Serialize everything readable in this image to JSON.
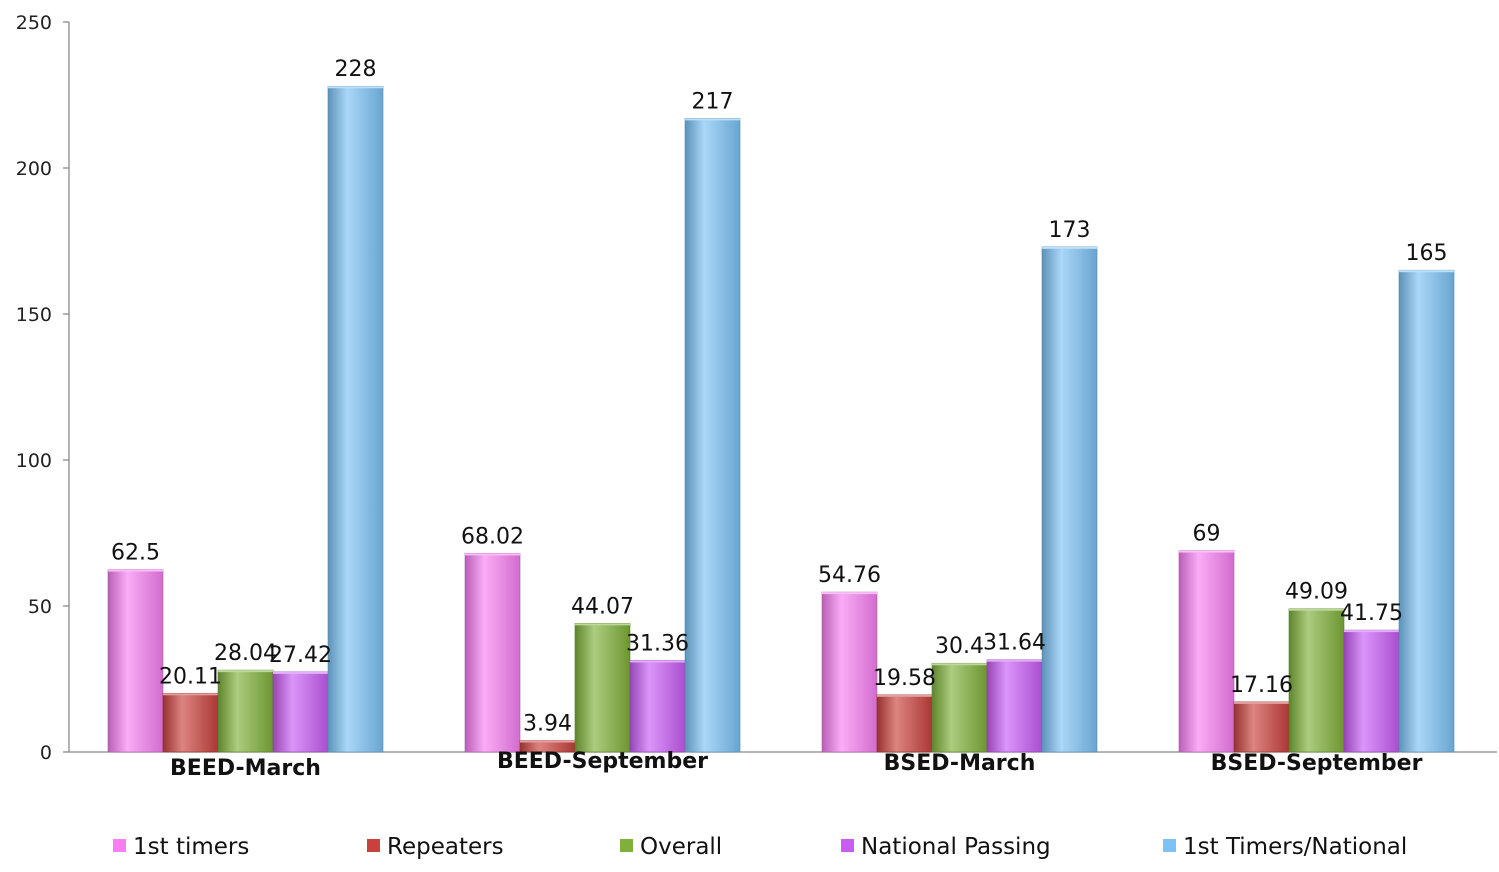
{
  "chart_data": {
    "type": "bar",
    "title": "",
    "xlabel": "",
    "ylabel": "",
    "ylim": [
      0,
      250
    ],
    "yticks": [
      0,
      50,
      100,
      150,
      200,
      250
    ],
    "grid": false,
    "legend_position": "bottom",
    "categories": [
      "BEED-March",
      "BEED-September",
      "BSED-March",
      "BSED-September"
    ],
    "series": [
      {
        "name": "1st timers",
        "color": "#f77ff2",
        "values": [
          62.5,
          68.02,
          54.76,
          69
        ],
        "labels": [
          "62.5",
          "68.02",
          "54.76",
          "69"
        ]
      },
      {
        "name": "Repeaters",
        "color": "#c9413d",
        "values": [
          20.11,
          3.94,
          19.58,
          17.16
        ],
        "labels": [
          "20.11",
          "3.94",
          "19.58",
          "17.16"
        ]
      },
      {
        "name": "Overall",
        "color": "#7fb13a",
        "values": [
          28.04,
          44.07,
          30.4,
          49.09
        ],
        "labels": [
          "28.04",
          "44.07",
          "30.4",
          "49.09"
        ]
      },
      {
        "name": "National Passing",
        "color": "#c85cf5",
        "values": [
          27.42,
          31.36,
          31.64,
          41.75
        ],
        "labels": [
          "27.42",
          "31.36",
          "31.64",
          "41.75"
        ]
      },
      {
        "name": "1st Timers/National",
        "color": "#7cc2f5",
        "values": [
          228,
          217,
          173,
          165
        ],
        "labels": [
          "228",
          "217",
          "173",
          "165"
        ]
      }
    ]
  }
}
